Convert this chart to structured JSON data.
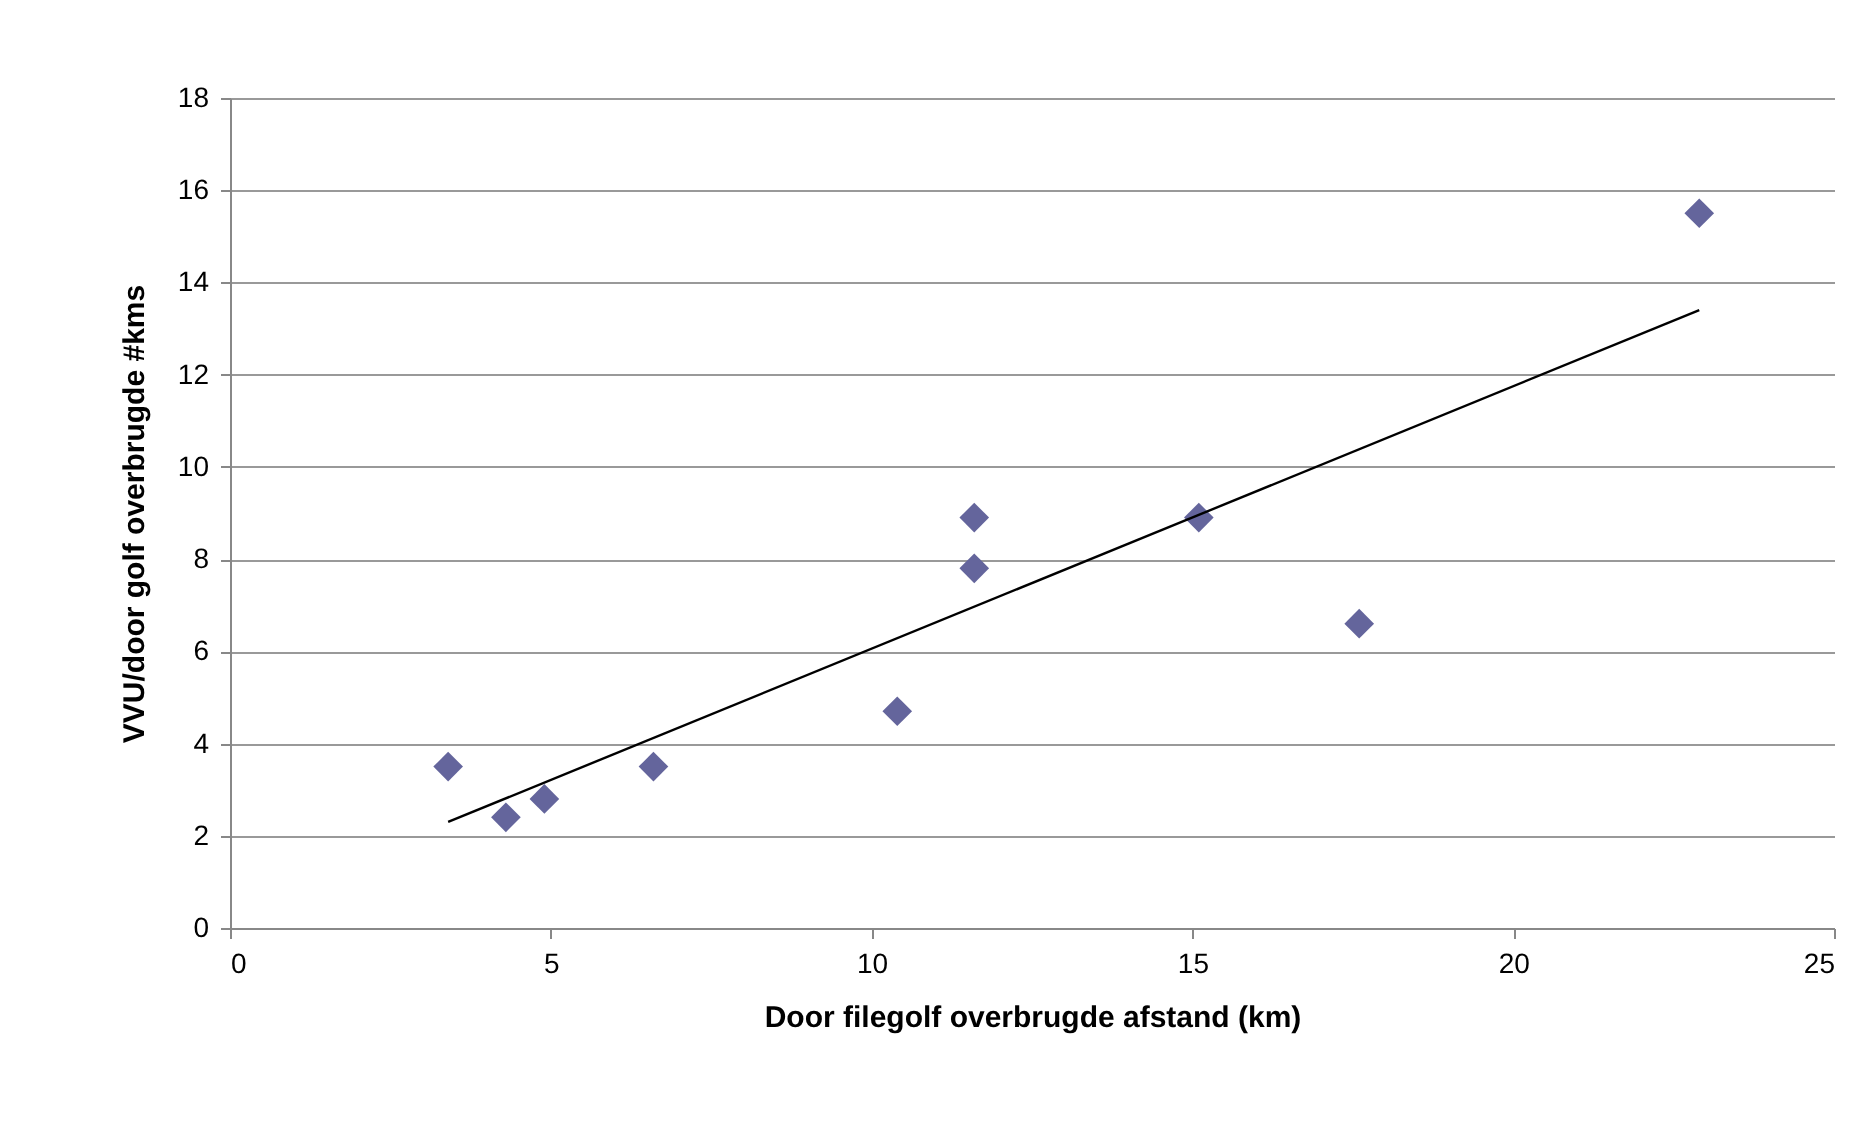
{
  "chart_data": {
    "type": "scatter",
    "xlabel": "Door filegolf overbrugde afstand (km)",
    "ylabel": "VVU/door golf overbrugde #kms",
    "xlim": [
      0,
      25
    ],
    "xticks": [
      0,
      5,
      10,
      15,
      20,
      25
    ],
    "ylim": [
      0,
      18
    ],
    "yticks": [
      0,
      2,
      4,
      6,
      8,
      10,
      12,
      14,
      16,
      18
    ],
    "grid": "y",
    "series": [
      {
        "marker": "diamond",
        "color": "#64659c",
        "x": [
          3.4,
          4.3,
          4.9,
          6.6,
          10.4,
          11.6,
          11.6,
          15.1,
          17.6,
          22.9
        ],
        "values": [
          3.5,
          2.4,
          2.8,
          3.5,
          4.7,
          8.9,
          7.8,
          8.9,
          6.6,
          15.5
        ]
      },
      {
        "type": "line",
        "marker": "none",
        "color": "#000000",
        "x": [
          3.4,
          22.9
        ],
        "values": [
          2.3,
          13.4
        ]
      }
    ]
  }
}
